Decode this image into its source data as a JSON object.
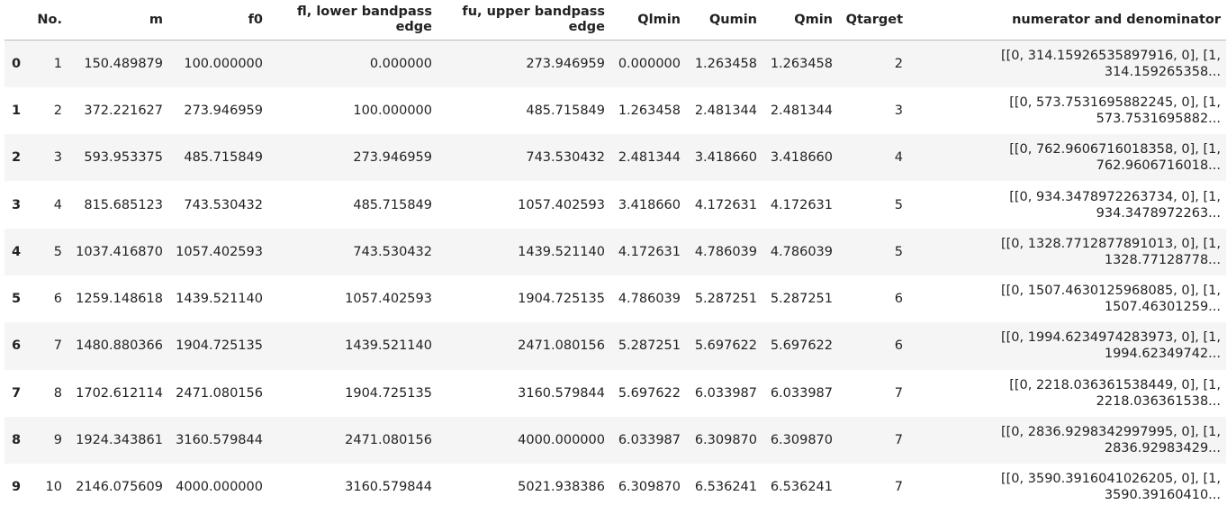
{
  "table": {
    "columns": [
      "",
      "No.",
      "m",
      "f0",
      "fl, lower bandpass edge",
      "fu, upper bandpass edge",
      "Qlmin",
      "Qumin",
      "Qmin",
      "Qtarget",
      "numerator and denominator"
    ],
    "rows": [
      {
        "index": "0",
        "no": "1",
        "m": "150.489879",
        "f0": "100.000000",
        "fl": "0.000000",
        "fu": "273.946959",
        "qlmin": "0.000000",
        "qumin": "1.263458",
        "qmin": "1.263458",
        "qtarget": "2",
        "nd1": "[[0, 314.15926535897916, 0], [1,",
        "nd2": "314.159265358..."
      },
      {
        "index": "1",
        "no": "2",
        "m": "372.221627",
        "f0": "273.946959",
        "fl": "100.000000",
        "fu": "485.715849",
        "qlmin": "1.263458",
        "qumin": "2.481344",
        "qmin": "2.481344",
        "qtarget": "3",
        "nd1": "[[0, 573.7531695882245, 0], [1,",
        "nd2": "573.7531695882..."
      },
      {
        "index": "2",
        "no": "3",
        "m": "593.953375",
        "f0": "485.715849",
        "fl": "273.946959",
        "fu": "743.530432",
        "qlmin": "2.481344",
        "qumin": "3.418660",
        "qmin": "3.418660",
        "qtarget": "4",
        "nd1": "[[0, 762.9606716018358, 0], [1,",
        "nd2": "762.9606716018..."
      },
      {
        "index": "3",
        "no": "4",
        "m": "815.685123",
        "f0": "743.530432",
        "fl": "485.715849",
        "fu": "1057.402593",
        "qlmin": "3.418660",
        "qumin": "4.172631",
        "qmin": "4.172631",
        "qtarget": "5",
        "nd1": "[[0, 934.3478972263734, 0], [1,",
        "nd2": "934.3478972263..."
      },
      {
        "index": "4",
        "no": "5",
        "m": "1037.416870",
        "f0": "1057.402593",
        "fl": "743.530432",
        "fu": "1439.521140",
        "qlmin": "4.172631",
        "qumin": "4.786039",
        "qmin": "4.786039",
        "qtarget": "5",
        "nd1": "[[0, 1328.7712877891013, 0], [1,",
        "nd2": "1328.77128778..."
      },
      {
        "index": "5",
        "no": "6",
        "m": "1259.148618",
        "f0": "1439.521140",
        "fl": "1057.402593",
        "fu": "1904.725135",
        "qlmin": "4.786039",
        "qumin": "5.287251",
        "qmin": "5.287251",
        "qtarget": "6",
        "nd1": "[[0, 1507.4630125968085, 0], [1,",
        "nd2": "1507.46301259..."
      },
      {
        "index": "6",
        "no": "7",
        "m": "1480.880366",
        "f0": "1904.725135",
        "fl": "1439.521140",
        "fu": "2471.080156",
        "qlmin": "5.287251",
        "qumin": "5.697622",
        "qmin": "5.697622",
        "qtarget": "6",
        "nd1": "[[0, 1994.6234974283973, 0], [1,",
        "nd2": "1994.62349742..."
      },
      {
        "index": "7",
        "no": "8",
        "m": "1702.612114",
        "f0": "2471.080156",
        "fl": "1904.725135",
        "fu": "3160.579844",
        "qlmin": "5.697622",
        "qumin": "6.033987",
        "qmin": "6.033987",
        "qtarget": "7",
        "nd1": "[[0, 2218.036361538449, 0], [1,",
        "nd2": "2218.036361538..."
      },
      {
        "index": "8",
        "no": "9",
        "m": "1924.343861",
        "f0": "3160.579844",
        "fl": "2471.080156",
        "fu": "4000.000000",
        "qlmin": "6.033987",
        "qumin": "6.309870",
        "qmin": "6.309870",
        "qtarget": "7",
        "nd1": "[[0, 2836.9298342997995, 0], [1,",
        "nd2": "2836.92983429..."
      },
      {
        "index": "9",
        "no": "10",
        "m": "2146.075609",
        "f0": "4000.000000",
        "fl": "3160.579844",
        "fu": "5021.938386",
        "qlmin": "6.309870",
        "qumin": "6.536241",
        "qmin": "6.536241",
        "qtarget": "7",
        "nd1": "[[0, 3590.3916041026205, 0], [1,",
        "nd2": "3590.39160410..."
      }
    ]
  }
}
